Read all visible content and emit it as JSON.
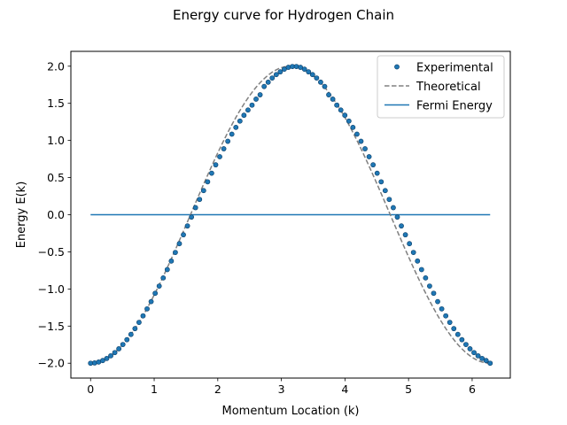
{
  "chart_data": {
    "type": "line",
    "title": "Energy curve for Hydrogen Chain",
    "xlabel": "Momentum Location (k)",
    "ylabel": "Energy E(k)",
    "xlim": [
      -0.31,
      6.6
    ],
    "ylim": [
      -2.2,
      2.2
    ],
    "xticks": [
      0,
      1,
      2,
      3,
      4,
      5,
      6
    ],
    "xtick_labels": [
      "0",
      "1",
      "2",
      "3",
      "4",
      "5",
      "6"
    ],
    "yticks": [
      -2.0,
      -1.5,
      -1.0,
      -0.5,
      0.0,
      0.5,
      1.0,
      1.5,
      2.0
    ],
    "ytick_labels": [
      "−2.0",
      "−1.5",
      "−1.0",
      "−0.5",
      "0.0",
      "0.5",
      "1.0",
      "1.5",
      "2.0"
    ],
    "grid": false,
    "legend_position": "top-right",
    "series": [
      {
        "name": "Experimental",
        "style": "markers",
        "color": "#1f77b4",
        "edge_color": "#0b3d66",
        "x": [
          0,
          0.0635,
          0.1269,
          0.1904,
          0.2539,
          0.3173,
          0.3808,
          0.4443,
          0.5077,
          0.5712,
          0.6347,
          0.6981,
          0.7616,
          0.8251,
          0.8885,
          0.952,
          1.0155,
          1.0789,
          1.1424,
          1.2059,
          1.2693,
          1.3328,
          1.3963,
          1.4597,
          1.5232,
          1.5867,
          1.6501,
          1.7136,
          1.7771,
          1.8405,
          1.904,
          1.9675,
          2.0309,
          2.0944,
          2.1579,
          2.2213,
          2.2848,
          2.3483,
          2.4117,
          2.4752,
          2.5387,
          2.6021,
          2.6656,
          2.7291,
          2.7925,
          2.856,
          2.9195,
          2.9829,
          3.0464,
          3.1099,
          3.1733,
          3.2368,
          3.3003,
          3.3637,
          3.4272,
          3.4907,
          3.5541,
          3.6176,
          3.6811,
          3.7445,
          3.808,
          3.8715,
          3.9349,
          3.9984,
          4.0619,
          4.1253,
          4.1888,
          4.2523,
          4.3157,
          4.3792,
          4.4427,
          4.5061,
          4.5696,
          4.6331,
          4.6965,
          4.76,
          4.8235,
          4.8869,
          4.9504,
          5.0139,
          5.0773,
          5.1408,
          5.2043,
          5.2677,
          5.3312,
          5.3947,
          5.4581,
          5.5216,
          5.5851,
          5.6485,
          5.712,
          5.7755,
          5.8389,
          5.9024,
          5.9659,
          6.0293,
          6.0928,
          6.1563,
          6.2197,
          6.2832
        ],
        "y": [
          -2.0,
          -1.996,
          -1.984,
          -1.964,
          -1.936,
          -1.9,
          -1.857,
          -1.806,
          -1.748,
          -1.683,
          -1.612,
          -1.534,
          -1.45,
          -1.362,
          -1.268,
          -1.17,
          -1.058,
          -0.961,
          -0.851,
          -0.739,
          -0.624,
          -0.508,
          -0.39,
          -0.27,
          -0.151,
          -0.032,
          0.095,
          0.206,
          0.325,
          0.443,
          0.559,
          0.672,
          0.781,
          0.888,
          0.989,
          1.085,
          1.176,
          1.261,
          1.339,
          1.41,
          1.476,
          1.557,
          1.615,
          1.727,
          1.785,
          1.841,
          1.887,
          1.924,
          1.96,
          1.985,
          1.996,
          1.996,
          1.985,
          1.96,
          1.924,
          1.887,
          1.841,
          1.785,
          1.727,
          1.615,
          1.557,
          1.476,
          1.41,
          1.339,
          1.261,
          1.176,
          1.085,
          0.989,
          0.888,
          0.781,
          0.672,
          0.559,
          0.443,
          0.325,
          0.206,
          0.095,
          -0.032,
          -0.151,
          -0.27,
          -0.39,
          -0.508,
          -0.624,
          -0.739,
          -0.851,
          -0.961,
          -1.058,
          -1.17,
          -1.268,
          -1.362,
          -1.45,
          -1.534,
          -1.612,
          -1.683,
          -1.748,
          -1.806,
          -1.857,
          -1.9,
          -1.936,
          -1.964,
          -2.0
        ]
      },
      {
        "name": "Theoretical",
        "style": "dashed-line",
        "color": "#808080",
        "function": "E(k) = -2 cos(k)",
        "x_range": [
          0,
          6.2832
        ]
      },
      {
        "name": "Fermi Energy",
        "style": "line",
        "color": "#1f77b4",
        "x": [
          0,
          6.2832
        ],
        "y": [
          0,
          0
        ]
      }
    ]
  }
}
